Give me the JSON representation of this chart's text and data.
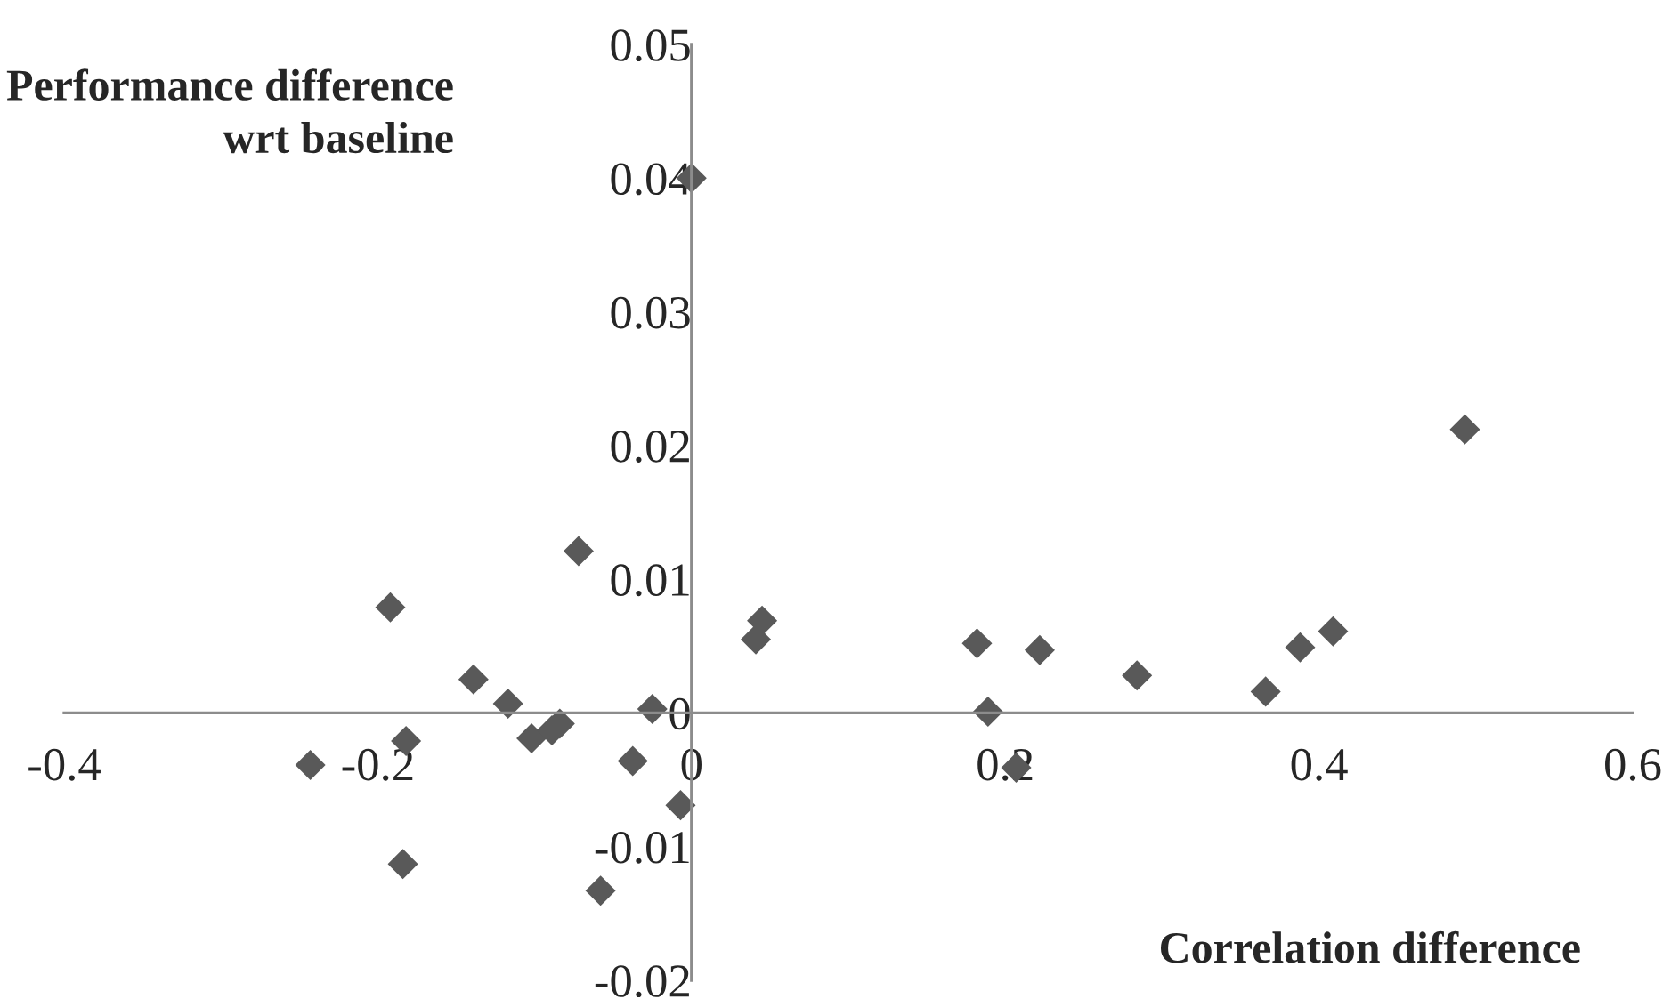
{
  "chart_data": {
    "type": "scatter",
    "xlabel": "Correlation difference",
    "ylabel": "Performance difference\nwrt baseline",
    "x": [
      0,
      0.493,
      -0.072,
      -0.192,
      -0.139,
      -0.117,
      -0.102,
      -0.089,
      -0.084,
      -0.182,
      -0.243,
      -0.184,
      -0.058,
      -0.0375,
      -0.025,
      -0.007,
      0.041,
      0.045,
      0.182,
      0.189,
      0.222,
      0.207,
      0.284,
      0.366,
      0.388,
      0.409
    ],
    "series": [
      {
        "color": "#595959",
        "values": [
          0.04,
          0.0212,
          0.0121,
          0.0079,
          0.0025,
          0.0007,
          -0.0019,
          -0.0013,
          -0.0008,
          -0.0021,
          -0.0039,
          -0.0113,
          -0.0133,
          -0.0036,
          0.0003,
          -0.0069,
          0.0055,
          0.0069,
          0.0052,
          0.0001,
          0.0047,
          -0.0041,
          0.0028,
          0.0016,
          0.0049,
          0.0061
        ]
      }
    ],
    "marker": "diamond",
    "xlim": [
      -0.4,
      0.6
    ],
    "xticks": [
      -0.4,
      -0.2,
      0,
      0.2,
      0.4,
      0.6
    ],
    "ylim": [
      -0.02,
      0.05
    ],
    "yticks": [
      -0.02,
      -0.01,
      0,
      0.01,
      0.02,
      0.03,
      0.04,
      0.05
    ]
  }
}
